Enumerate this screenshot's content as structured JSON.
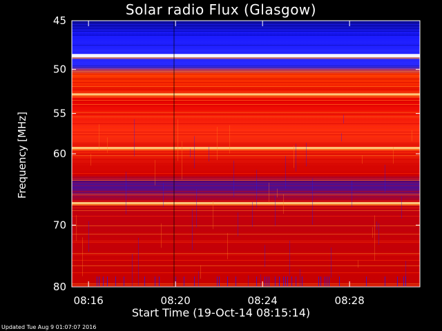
{
  "chart_data": {
    "type": "heatmap",
    "title": "Solar radio Flux (Glasgow)",
    "xlabel": "Start Time (19-Oct-14 08:15:14)",
    "ylabel": "Frequency [MHz]",
    "x_range": [
      "08:15:14",
      "08:31:14"
    ],
    "xticks": [
      "08:16",
      "08:20",
      "08:24",
      "08:28"
    ],
    "ylim": [
      45,
      80
    ],
    "yticks": [
      45,
      50,
      55,
      60,
      70,
      80
    ],
    "y_scale": "log",
    "colormap": [
      "#0000a0",
      "#1a1aff",
      "#d00000",
      "#ff3000",
      "#ff8020",
      "#ffd080",
      "#ffffff"
    ],
    "bright_bands_mhz": [
      48.5,
      52.8,
      59.3,
      66.8
    ],
    "interference_gap_time": "08:19:54"
  },
  "footer_text": "Updated Tue Aug  9 01:07:07 2016"
}
